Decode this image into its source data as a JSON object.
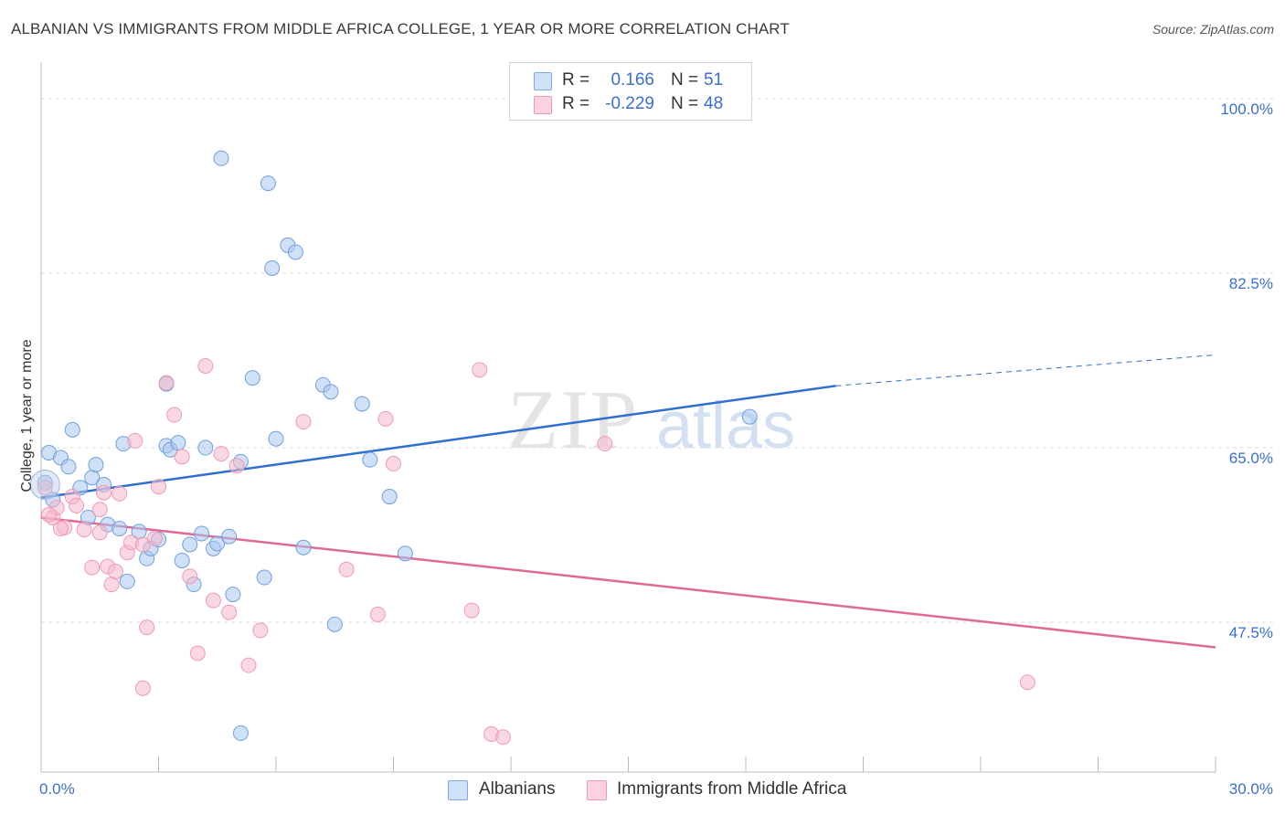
{
  "title": "ALBANIAN VS IMMIGRANTS FROM MIDDLE AFRICA COLLEGE, 1 YEAR OR MORE CORRELATION CHART",
  "source": "Source: ZipAtlas.com",
  "watermark": {
    "zip": "ZIP",
    "atlas": "atlas"
  },
  "legend": {
    "rows": [
      {
        "r_label": "R =",
        "r_value": "0.166",
        "n_label": "N =",
        "n_value": "51",
        "color": "#a9c6f0"
      },
      {
        "r_label": "R =",
        "r_value": "-0.229",
        "n_label": "N =",
        "n_value": "48",
        "color": "#f5b8cc"
      }
    ]
  },
  "bottom_legend": [
    {
      "label": "Albanians",
      "color": "#a9c6f0"
    },
    {
      "label": "Immigrants from Middle Africa",
      "color": "#f5b8cc"
    }
  ],
  "chart_data": {
    "type": "scatter",
    "title": "ALBANIAN VS IMMIGRANTS FROM MIDDLE AFRICA COLLEGE, 1 YEAR OR MORE CORRELATION CHART",
    "xlabel": "",
    "ylabel": "College, 1 year or more",
    "xlim": [
      0,
      30
    ],
    "ylim": [
      32.5,
      103
    ],
    "x_tick_labels": [
      "0.0%",
      "30.0%"
    ],
    "y_ticks": [
      47.5,
      65.0,
      82.5,
      100.0
    ],
    "y_tick_labels": [
      "47.5%",
      "65.0%",
      "82.5%",
      "100.0%"
    ],
    "grid": true,
    "series": [
      {
        "name": "Albanians",
        "color": "#6f9fe0",
        "fill": "#a9c6f0",
        "trend": {
          "x": [
            0,
            20.3
          ],
          "y": [
            60.0,
            71.2
          ],
          "dashed_to": [
            30,
            74.3
          ],
          "color": "#2f6fd0"
        },
        "points": [
          [
            0.1,
            61.5
          ],
          [
            0.2,
            64.5
          ],
          [
            0.5,
            64.0
          ],
          [
            0.7,
            63.1
          ],
          [
            0.8,
            66.8
          ],
          [
            1.0,
            61.0
          ],
          [
            1.2,
            58.0
          ],
          [
            1.3,
            62.0
          ],
          [
            1.4,
            63.3
          ],
          [
            1.6,
            61.3
          ],
          [
            1.7,
            57.3
          ],
          [
            2.0,
            56.9
          ],
          [
            2.1,
            65.4
          ],
          [
            2.2,
            51.6
          ],
          [
            2.5,
            56.6
          ],
          [
            2.7,
            53.9
          ],
          [
            2.8,
            54.9
          ],
          [
            3.0,
            55.8
          ],
          [
            3.2,
            65.2
          ],
          [
            3.3,
            64.8
          ],
          [
            3.5,
            65.5
          ],
          [
            3.6,
            53.7
          ],
          [
            3.8,
            55.3
          ],
          [
            3.9,
            51.3
          ],
          [
            4.1,
            56.4
          ],
          [
            4.2,
            65.0
          ],
          [
            4.4,
            54.9
          ],
          [
            4.5,
            55.4
          ],
          [
            4.8,
            56.1
          ],
          [
            4.9,
            50.3
          ],
          [
            5.1,
            63.6
          ],
          [
            5.7,
            52.0
          ],
          [
            6.0,
            65.9
          ],
          [
            5.8,
            91.5
          ],
          [
            4.6,
            94.0
          ],
          [
            6.3,
            85.3
          ],
          [
            6.5,
            84.6
          ],
          [
            5.9,
            83.0
          ],
          [
            5.4,
            72.0
          ],
          [
            7.2,
            71.3
          ],
          [
            7.4,
            70.6
          ],
          [
            8.2,
            69.4
          ],
          [
            8.4,
            63.8
          ],
          [
            8.9,
            60.1
          ],
          [
            9.3,
            54.4
          ],
          [
            7.5,
            47.3
          ],
          [
            6.7,
            55.0
          ],
          [
            3.2,
            71.4
          ],
          [
            5.1,
            36.4
          ],
          [
            18.1,
            68.1
          ],
          [
            0.3,
            59.8
          ]
        ]
      },
      {
        "name": "Immigrants from Middle Africa",
        "color": "#ee9ab6",
        "fill": "#f5b8cc",
        "trend": {
          "x": [
            0,
            30
          ],
          "y": [
            58.0,
            45.0
          ],
          "color": "#e06a97"
        },
        "points": [
          [
            0.1,
            61.0
          ],
          [
            0.3,
            58.0
          ],
          [
            0.4,
            59.0
          ],
          [
            0.6,
            57.0
          ],
          [
            0.8,
            60.1
          ],
          [
            0.9,
            59.2
          ],
          [
            1.1,
            56.8
          ],
          [
            1.3,
            53.0
          ],
          [
            1.5,
            56.5
          ],
          [
            1.6,
            60.5
          ],
          [
            1.7,
            53.1
          ],
          [
            1.8,
            51.3
          ],
          [
            1.9,
            52.6
          ],
          [
            2.0,
            60.4
          ],
          [
            2.2,
            54.5
          ],
          [
            2.3,
            55.5
          ],
          [
            2.4,
            65.7
          ],
          [
            2.6,
            55.3
          ],
          [
            2.7,
            47.0
          ],
          [
            2.9,
            55.9
          ],
          [
            3.0,
            61.1
          ],
          [
            3.2,
            71.5
          ],
          [
            3.4,
            68.3
          ],
          [
            3.6,
            64.1
          ],
          [
            3.8,
            52.1
          ],
          [
            4.0,
            44.4
          ],
          [
            4.2,
            73.2
          ],
          [
            4.4,
            49.7
          ],
          [
            4.6,
            64.4
          ],
          [
            4.8,
            48.5
          ],
          [
            5.0,
            63.2
          ],
          [
            5.3,
            43.2
          ],
          [
            5.6,
            46.7
          ],
          [
            6.7,
            67.6
          ],
          [
            7.8,
            52.8
          ],
          [
            8.6,
            48.3
          ],
          [
            8.8,
            67.9
          ],
          [
            9.0,
            63.4
          ],
          [
            11.0,
            48.7
          ],
          [
            11.2,
            72.8
          ],
          [
            11.5,
            36.3
          ],
          [
            11.8,
            36.0
          ],
          [
            14.4,
            65.4
          ],
          [
            25.2,
            41.5
          ],
          [
            2.6,
            40.9
          ],
          [
            0.5,
            56.9
          ],
          [
            1.5,
            58.8
          ],
          [
            0.2,
            58.3
          ]
        ]
      }
    ]
  }
}
